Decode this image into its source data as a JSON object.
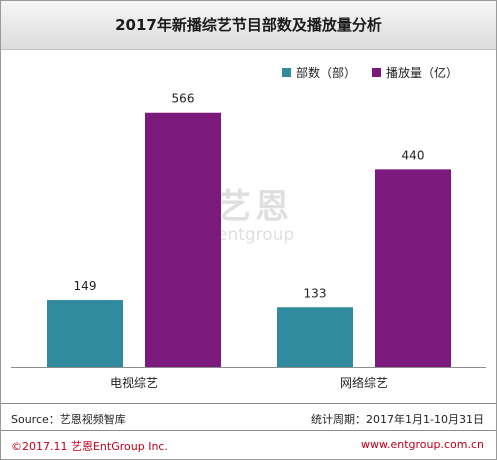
{
  "chart_data": {
    "type": "bar",
    "title": "2017年新播综艺节目部数及播放量分析",
    "categories": [
      "电视综艺",
      "网络综艺"
    ],
    "series": [
      {
        "name": "部数（部）",
        "color": "#318b9f",
        "values": [
          149,
          133
        ]
      },
      {
        "name": "播放量（亿）",
        "color": "#7b1a7c",
        "values": [
          566,
          440
        ]
      }
    ],
    "ylim": [
      0,
      650
    ],
    "grid": false,
    "legend_position": "top-right"
  },
  "watermark": {
    "name_cn": "艺恩",
    "name_en": "entgroup"
  },
  "footer": {
    "source": "Source：艺恩视频智库",
    "period": "统计周期：2017年1月1-10月31日",
    "copyright": "©2017.11  艺恩EntGroup Inc.",
    "website": "www.entgroup.com.cn"
  }
}
